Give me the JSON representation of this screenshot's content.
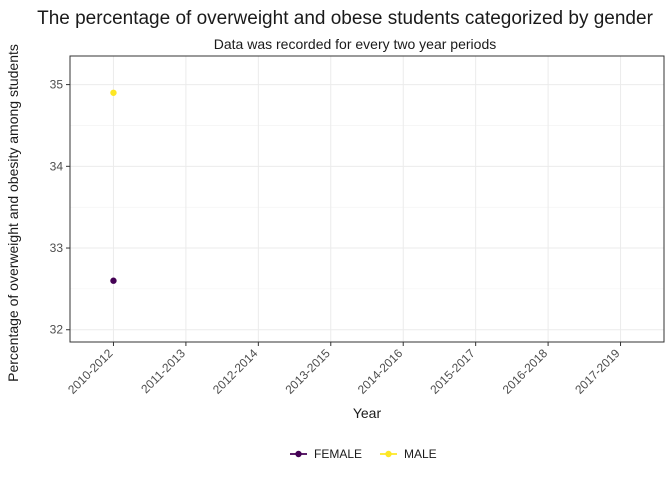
{
  "chart_data": {
    "type": "line",
    "title": "The percentage of overweight and obese students categorized by gender",
    "subtitle": "Data was recorded for every two year periods",
    "xlabel": "Year",
    "ylabel": "Percentage of overweight and obesity among students",
    "categories": [
      "2010-2012",
      "2011-2013",
      "2012-2014",
      "2013-2015",
      "2014-2016",
      "2015-2017",
      "2016-2018",
      "2017-2019"
    ],
    "ylim": [
      31.85,
      35.35
    ],
    "yticks": [
      32,
      33,
      34,
      35
    ],
    "grid": true,
    "legend_position": "bottom",
    "series": [
      {
        "name": "FEMALE",
        "color": "#440154",
        "values": [
          32.6,
          null,
          null,
          null,
          null,
          null,
          null,
          null
        ]
      },
      {
        "name": "MALE",
        "color": "#FDE725",
        "values": [
          34.9,
          null,
          null,
          null,
          null,
          null,
          null,
          null
        ]
      }
    ]
  }
}
